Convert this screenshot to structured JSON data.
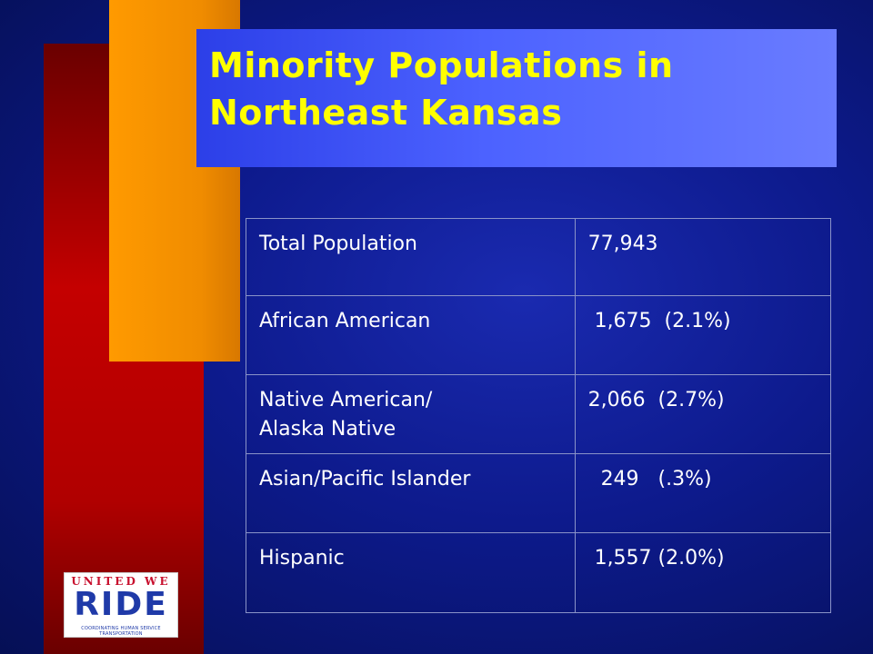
{
  "slide": {
    "title_line1": "Minority Populations in",
    "title_line2": "Northeast Kansas"
  },
  "table": {
    "rows": [
      {
        "label": "Total Population",
        "value": "77,943"
      },
      {
        "label": "African American",
        "value": " 1,675  (2.1%)"
      },
      {
        "label_line1": "Native American/",
        "label_line2": "Alaska Native",
        "value": "2,066  (2.7%)"
      },
      {
        "label": "Asian/Pacific Islander",
        "value": "  249   (.3%)"
      },
      {
        "label": "Hispanic",
        "value": " 1,557 (2.0%)"
      }
    ]
  },
  "logo": {
    "top": "UNITED WE",
    "main": "RIDE",
    "sub": "COORDINATING HUMAN SERVICE TRANSPORTATION"
  },
  "colors": {
    "background": "#0d1a8c",
    "red_bar": "#c40000",
    "orange_bar": "#ff9a00",
    "title_band": "#4c62ff",
    "title_text": "#ffff00",
    "table_text": "#ffffff"
  }
}
